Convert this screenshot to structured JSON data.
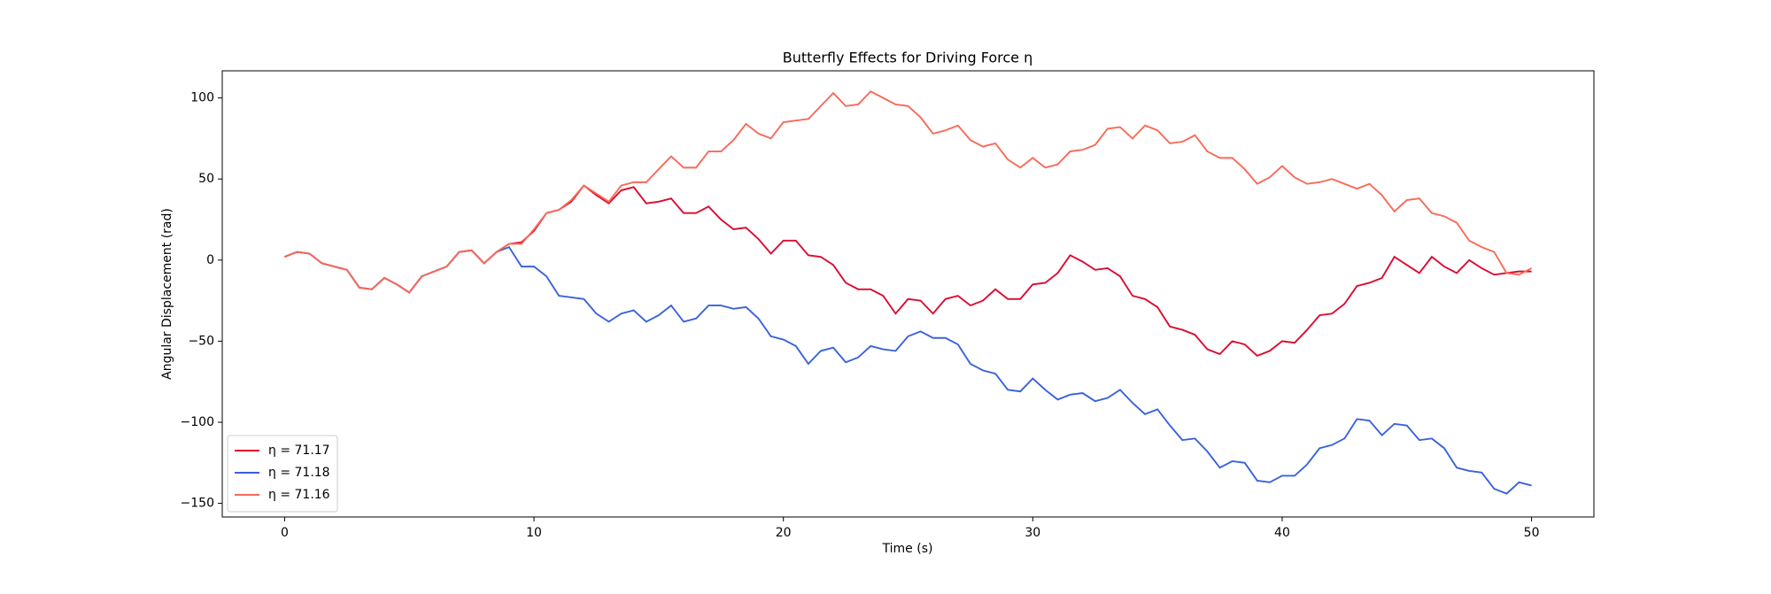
{
  "chart_data": {
    "type": "line",
    "title": "Butterfly Effects for Driving Force η",
    "xlabel": "Time (s)",
    "ylabel": "Angular Displacement (rad)",
    "x": [
      0,
      0.5,
      1,
      1.5,
      2,
      2.5,
      3,
      3.5,
      4,
      4.5,
      5,
      5.5,
      6,
      6.5,
      7,
      7.5,
      8,
      8.5,
      9,
      9.5,
      10,
      10.5,
      11,
      11.5,
      12,
      12.5,
      13,
      13.5,
      14,
      14.5,
      15,
      15.5,
      16,
      16.5,
      17,
      17.5,
      18,
      18.5,
      19,
      19.5,
      20,
      20.5,
      21,
      21.5,
      22,
      22.5,
      23,
      23.5,
      24,
      24.5,
      25,
      25.5,
      26,
      26.5,
      27,
      27.5,
      28,
      28.5,
      29,
      29.5,
      30,
      30.5,
      31,
      31.5,
      32,
      32.5,
      33,
      33.5,
      34,
      34.5,
      35,
      35.5,
      36,
      36.5,
      37,
      37.5,
      38,
      38.5,
      39,
      39.5,
      40,
      40.5,
      41,
      41.5,
      42,
      42.5,
      43,
      43.5,
      44,
      44.5,
      45,
      45.5,
      46,
      46.5,
      47,
      47.5,
      48,
      48.5,
      49,
      49.5,
      50
    ],
    "series": [
      {
        "name": "η =  71.17",
        "color": "#dc0a32",
        "values": [
          2,
          5,
          4,
          -2,
          -4,
          -6,
          -17,
          -18,
          -11,
          -15,
          -20,
          -10,
          -7,
          -4,
          5,
          6,
          -2,
          5,
          10,
          11,
          18,
          29,
          31,
          36,
          46,
          40,
          35,
          43,
          45,
          35,
          36,
          38,
          29,
          29,
          33,
          25,
          19,
          20,
          13,
          4,
          12,
          12,
          3,
          2,
          -3,
          -14,
          -18,
          -18,
          -22,
          -33,
          -24,
          -25,
          -33,
          -24,
          -22,
          -28,
          -25,
          -18,
          -24,
          -24,
          -15,
          -14,
          -8,
          3,
          -1,
          -6,
          -5,
          -10,
          -22,
          -24,
          -29,
          -41,
          -43,
          -46,
          -55,
          -58,
          -50,
          -52,
          -59,
          -56,
          -50,
          -51,
          -43,
          -34,
          -33,
          -27,
          -16,
          -14,
          -11,
          2,
          -3,
          -8,
          2,
          -4,
          -8,
          0,
          -5,
          -9,
          -8,
          -7,
          -7
        ]
      },
      {
        "name": "η =  71.18",
        "color": "#3a62dc",
        "values": [
          2,
          5,
          4,
          -2,
          -4,
          -6,
          -17,
          -18,
          -11,
          -15,
          -20,
          -10,
          -7,
          -4,
          5,
          6,
          -2,
          5,
          8,
          -4,
          -4,
          -10,
          -22,
          -23,
          -24,
          -33,
          -38,
          -33,
          -31,
          -38,
          -34,
          -28,
          -38,
          -36,
          -28,
          -28,
          -30,
          -29,
          -36,
          -47,
          -49,
          -53,
          -64,
          -56,
          -54,
          -63,
          -60,
          -53,
          -55,
          -56,
          -47,
          -44,
          -48,
          -48,
          -52,
          -64,
          -68,
          -70,
          -80,
          -81,
          -73,
          -80,
          -86,
          -83,
          -82,
          -87,
          -85,
          -80,
          -88,
          -95,
          -92,
          -102,
          -111,
          -110,
          -118,
          -128,
          -124,
          -125,
          -136,
          -137,
          -133,
          -133,
          -126,
          -116,
          -114,
          -110,
          -98,
          -99,
          -108,
          -101,
          -102,
          -111,
          -110,
          -116,
          -128,
          -130,
          -131,
          -141,
          -144,
          -137,
          -139
        ]
      },
      {
        "name": "η =  71.16",
        "color": "#f86a58",
        "values": [
          2,
          5,
          4,
          -2,
          -4,
          -6,
          -17,
          -18,
          -11,
          -15,
          -20,
          -10,
          -7,
          -4,
          5,
          6,
          -2,
          5,
          10,
          10,
          19,
          29,
          31,
          37,
          46,
          41,
          36,
          46,
          48,
          48,
          56,
          64,
          57,
          57,
          67,
          67,
          74,
          84,
          78,
          75,
          85,
          86,
          87,
          95,
          103,
          95,
          96,
          104,
          100,
          96,
          95,
          88,
          78,
          80,
          83,
          74,
          70,
          72,
          62,
          57,
          63,
          57,
          59,
          67,
          68,
          71,
          81,
          82,
          75,
          83,
          80,
          72,
          73,
          77,
          67,
          63,
          63,
          56,
          47,
          51,
          58,
          51,
          47,
          48,
          50,
          47,
          44,
          47,
          40,
          30,
          37,
          38,
          29,
          27,
          23,
          12,
          8,
          5,
          -8,
          -9,
          -5
        ]
      }
    ],
    "xlim": [
      -2.5,
      52.5
    ],
    "xticks": [
      0,
      10,
      20,
      30,
      40,
      50
    ],
    "ylim": [
      -158.4,
      116.7
    ],
    "yticks": [
      {
        "value": -150,
        "label": "−150"
      },
      {
        "value": -100,
        "label": "−100"
      },
      {
        "value": -50,
        "label": "−50"
      },
      0,
      50,
      100
    ],
    "legend": "lower left"
  }
}
